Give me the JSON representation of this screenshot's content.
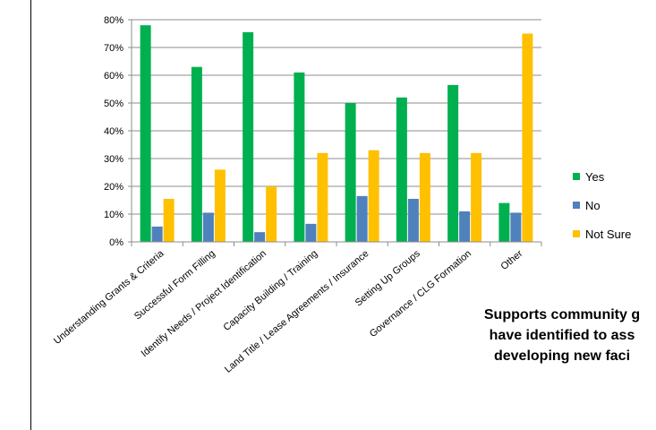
{
  "chart_data": {
    "type": "bar",
    "categories": [
      "Understanding Grants & Criteria",
      "Successful Form Filling",
      "Identify Needs / Project Identification",
      "Capacity Building / Training",
      "Land Title / Lease Agreements / Insurance",
      "Setting Up Groups",
      "Governance / CLG Formation",
      "Other"
    ],
    "series": [
      {
        "name": "Yes",
        "color": "#00b050",
        "values": [
          78,
          63,
          75.5,
          61,
          50,
          52,
          56.5,
          14
        ]
      },
      {
        "name": "No",
        "color": "#4f81bd",
        "values": [
          5.5,
          10.5,
          3.5,
          6.5,
          16.5,
          15.5,
          11,
          10.5
        ]
      },
      {
        "name": "Not Sure",
        "color": "#ffc000",
        "values": [
          15.5,
          26,
          20,
          32,
          33,
          32,
          32,
          75
        ]
      }
    ],
    "yticks": [
      "0%",
      "10%",
      "20%",
      "30%",
      "40%",
      "50%",
      "60%",
      "70%",
      "80%"
    ],
    "ylim": [
      0,
      80
    ],
    "grid": true,
    "legend": "right",
    "title": "",
    "xlabel": "",
    "ylabel": ""
  },
  "caption": {
    "line1": "Supports community g",
    "line2": "have identified to ass",
    "line3": "developing new faci"
  }
}
